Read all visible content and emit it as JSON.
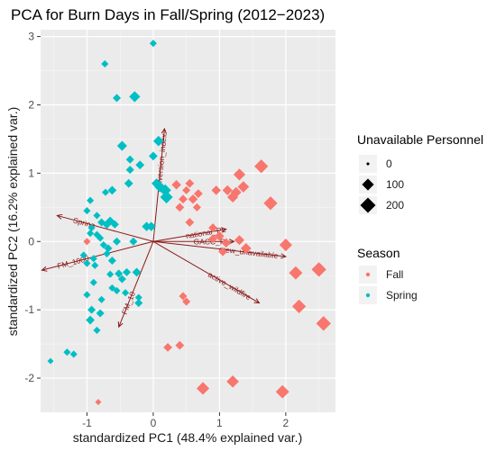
{
  "chart_data": {
    "type": "scatter",
    "title": "PCA for Burn Days in Fall/Spring (2012−2023)",
    "xlabel": "standardized PC1 (48.4% explained var.)",
    "ylabel": "standardized PC2 (16.2% explained var.)",
    "xlim": [
      -1.7,
      2.75
    ],
    "ylim": [
      -2.5,
      3.1
    ],
    "x_ticks": [
      -1,
      0,
      1,
      2
    ],
    "y_ticks": [
      -2,
      -1,
      0,
      1,
      2,
      3
    ],
    "grid": true,
    "background": "#EBEBEB",
    "size_legend": {
      "title": "Unavailable Personnel",
      "entries": [
        {
          "label": "0",
          "value": 0
        },
        {
          "label": "100",
          "value": 100
        },
        {
          "label": "200",
          "value": 200
        }
      ]
    },
    "color_legend": {
      "title": "Season",
      "entries": [
        {
          "label": "Fall",
          "color": "#F8766D"
        },
        {
          "label": "Spring",
          "color": "#00BFC4"
        }
      ]
    },
    "series": [
      {
        "name": "Fall",
        "color": "#F8766D",
        "points": [
          {
            "x": 0.35,
            "y": 0.83,
            "size": 50
          },
          {
            "x": 0.45,
            "y": 0.62,
            "size": 40
          },
          {
            "x": 0.5,
            "y": 0.75,
            "size": 30
          },
          {
            "x": 0.55,
            "y": 0.85,
            "size": 40
          },
          {
            "x": 0.6,
            "y": 0.62,
            "size": 50
          },
          {
            "x": 0.66,
            "y": 0.5,
            "size": 30
          },
          {
            "x": 0.68,
            "y": 0.7,
            "size": 40
          },
          {
            "x": 0.4,
            "y": 0.5,
            "size": 40
          },
          {
            "x": 0.55,
            "y": 0.28,
            "size": 40
          },
          {
            "x": 0.95,
            "y": 0.75,
            "size": 50
          },
          {
            "x": 1.12,
            "y": 0.75,
            "size": 60
          },
          {
            "x": 1.2,
            "y": 0.65,
            "size": 80
          },
          {
            "x": 1.25,
            "y": 0.72,
            "size": 70
          },
          {
            "x": 1.3,
            "y": 0.98,
            "size": 100
          },
          {
            "x": 1.36,
            "y": 0.8,
            "size": 90
          },
          {
            "x": 1.63,
            "y": 1.1,
            "size": 150
          },
          {
            "x": 1.77,
            "y": 0.56,
            "size": 150
          },
          {
            "x": 0.9,
            "y": 0.2,
            "size": 40
          },
          {
            "x": 1.0,
            "y": 0.08,
            "size": 50
          },
          {
            "x": 0.9,
            "y": 0.04,
            "size": 40
          },
          {
            "x": 1.1,
            "y": -0.02,
            "size": 50
          },
          {
            "x": 1.3,
            "y": 0.02,
            "size": 60
          },
          {
            "x": 1.05,
            "y": -0.15,
            "size": 40
          },
          {
            "x": 1.4,
            "y": -0.1,
            "size": 70
          },
          {
            "x": 2.0,
            "y": -0.05,
            "size": 120
          },
          {
            "x": 2.15,
            "y": -0.46,
            "size": 140
          },
          {
            "x": 2.5,
            "y": -0.41,
            "size": 180
          },
          {
            "x": 2.2,
            "y": -0.95,
            "size": 150
          },
          {
            "x": 2.57,
            "y": -1.2,
            "size": 180
          },
          {
            "x": 0.45,
            "y": -0.8,
            "size": 30
          },
          {
            "x": 0.5,
            "y": -0.88,
            "size": 30
          },
          {
            "x": 0.4,
            "y": -1.52,
            "size": 40
          },
          {
            "x": 0.22,
            "y": -1.55,
            "size": 40
          },
          {
            "x": 0.75,
            "y": -2.15,
            "size": 120
          },
          {
            "x": 1.2,
            "y": -2.05,
            "size": 110
          },
          {
            "x": 1.95,
            "y": -2.2,
            "size": 140
          },
          {
            "x": -0.83,
            "y": -2.35,
            "size": 10
          },
          {
            "x": -1.0,
            "y": 0.0,
            "size": 20
          }
        ]
      },
      {
        "name": "Spring",
        "color": "#00BFC4",
        "points": [
          {
            "x": 0.0,
            "y": 2.9,
            "size": 20
          },
          {
            "x": -0.73,
            "y": 2.6,
            "size": 20
          },
          {
            "x": -0.55,
            "y": 2.1,
            "size": 30
          },
          {
            "x": -0.28,
            "y": 2.12,
            "size": 80
          },
          {
            "x": -0.47,
            "y": 1.4,
            "size": 60
          },
          {
            "x": -0.35,
            "y": 1.2,
            "size": 30
          },
          {
            "x": 0.08,
            "y": 1.47,
            "size": 70
          },
          {
            "x": -0.2,
            "y": 1.12,
            "size": 40
          },
          {
            "x": -0.37,
            "y": 0.85,
            "size": 40
          },
          {
            "x": -0.62,
            "y": 0.75,
            "size": 40
          },
          {
            "x": -0.72,
            "y": 0.72,
            "size": 20
          },
          {
            "x": -0.95,
            "y": 0.6,
            "size": 20
          },
          {
            "x": 0.05,
            "y": 0.85,
            "size": 60
          },
          {
            "x": 0.1,
            "y": 0.8,
            "size": 80
          },
          {
            "x": 0.18,
            "y": 0.75,
            "size": 100
          },
          {
            "x": 0.2,
            "y": 0.65,
            "size": 120
          },
          {
            "x": -1.0,
            "y": 0.45,
            "size": 20
          },
          {
            "x": -0.85,
            "y": 0.38,
            "size": 20
          },
          {
            "x": -0.78,
            "y": 0.28,
            "size": 30
          },
          {
            "x": -0.65,
            "y": 0.3,
            "size": 40
          },
          {
            "x": -0.58,
            "y": 0.25,
            "size": 30
          },
          {
            "x": -0.93,
            "y": 0.2,
            "size": 20
          },
          {
            "x": -0.95,
            "y": 0.12,
            "size": 20
          },
          {
            "x": -0.85,
            "y": 0.1,
            "size": 20
          },
          {
            "x": -0.8,
            "y": 0.05,
            "size": 20
          },
          {
            "x": -0.7,
            "y": 0.25,
            "size": 40
          },
          {
            "x": -0.55,
            "y": 0.0,
            "size": 30
          },
          {
            "x": -0.75,
            "y": -0.05,
            "size": 20
          },
          {
            "x": -0.68,
            "y": -0.1,
            "size": 30
          },
          {
            "x": -0.1,
            "y": 0.22,
            "size": 50
          },
          {
            "x": -0.03,
            "y": 0.22,
            "size": 50
          },
          {
            "x": -1.05,
            "y": -0.2,
            "size": 20
          },
          {
            "x": -0.9,
            "y": -0.25,
            "size": 20
          },
          {
            "x": -0.7,
            "y": -0.18,
            "size": 20
          },
          {
            "x": -0.62,
            "y": -0.28,
            "size": 30
          },
          {
            "x": -1.0,
            "y": -0.32,
            "size": 20
          },
          {
            "x": -0.88,
            "y": -0.35,
            "size": 20
          },
          {
            "x": -0.65,
            "y": -0.48,
            "size": 20
          },
          {
            "x": -0.52,
            "y": -0.47,
            "size": 30
          },
          {
            "x": -0.4,
            "y": -0.45,
            "size": 30
          },
          {
            "x": -0.25,
            "y": -0.45,
            "size": 40
          },
          {
            "x": -0.47,
            "y": -0.55,
            "size": 30
          },
          {
            "x": -0.9,
            "y": -0.6,
            "size": 20
          },
          {
            "x": -0.62,
            "y": -0.68,
            "size": 20
          },
          {
            "x": -0.42,
            "y": -0.75,
            "size": 20
          },
          {
            "x": -1.0,
            "y": -0.78,
            "size": 20
          },
          {
            "x": -0.78,
            "y": -0.85,
            "size": 20
          },
          {
            "x": -0.55,
            "y": -0.72,
            "size": 20
          },
          {
            "x": -0.22,
            "y": -0.82,
            "size": 20
          },
          {
            "x": -0.22,
            "y": -0.9,
            "size": 30
          },
          {
            "x": -0.93,
            "y": -1.0,
            "size": 30
          },
          {
            "x": -0.8,
            "y": -1.05,
            "size": 30
          },
          {
            "x": -0.95,
            "y": -1.15,
            "size": 40
          },
          {
            "x": -0.85,
            "y": -1.3,
            "size": 20
          },
          {
            "x": -1.3,
            "y": -1.62,
            "size": 20
          },
          {
            "x": -1.2,
            "y": -1.65,
            "size": 20
          },
          {
            "x": -1.55,
            "y": -1.75,
            "size": 10
          },
          {
            "x": -0.3,
            "y": 0.0,
            "size": 30
          },
          {
            "x": -0.35,
            "y": 1.05,
            "size": 30
          },
          {
            "x": 0.0,
            "y": 1.25,
            "size": 40
          }
        ]
      }
    ],
    "loadings": [
      {
        "label": "inversion_index",
        "x": 0.17,
        "y": 1.65
      },
      {
        "label": "Spring",
        "x": -1.45,
        "y": 0.38
      },
      {
        "label": "FM_1000",
        "x": -1.68,
        "y": -0.42
      },
      {
        "label": "FM_10",
        "x": -0.52,
        "y": -1.25
      },
      {
        "label": "active_wildfire",
        "x": 1.6,
        "y": -0.9
      },
      {
        "label": "national_PL",
        "x": 1.1,
        "y": 0.18
      },
      {
        "label": "GACC_PL",
        "x": 1.22,
        "y": 0.0
      },
      {
        "label": "crew_unavailable",
        "x": 2.0,
        "y": -0.22
      }
    ]
  }
}
